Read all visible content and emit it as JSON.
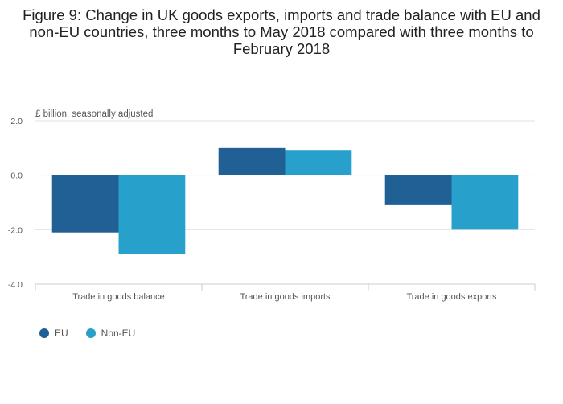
{
  "chart_data": {
    "type": "bar",
    "title": "Figure 9: Change in UK goods exports, imports and trade balance with EU and non-EU countries, three months to May 2018 compared with three months to February 2018",
    "ylabel": "£ billion, seasonally adjusted",
    "xlabel": "",
    "categories": [
      "Trade in goods balance",
      "Trade in goods imports",
      "Trade in goods exports"
    ],
    "series": [
      {
        "name": "EU",
        "color": "#206095",
        "values": [
          -2.1,
          1.0,
          -1.1
        ]
      },
      {
        "name": "Non-EU",
        "color": "#27a0cc",
        "values": [
          -2.9,
          0.9,
          -2.0
        ]
      }
    ],
    "ylim": [
      -4,
      2
    ],
    "yticks": [
      "2.0",
      "0.0",
      "-2.0",
      "-4.0"
    ],
    "ytick_values": [
      2,
      0,
      -2,
      -4
    ],
    "legend_position": "bottom-left",
    "grid": true
  }
}
